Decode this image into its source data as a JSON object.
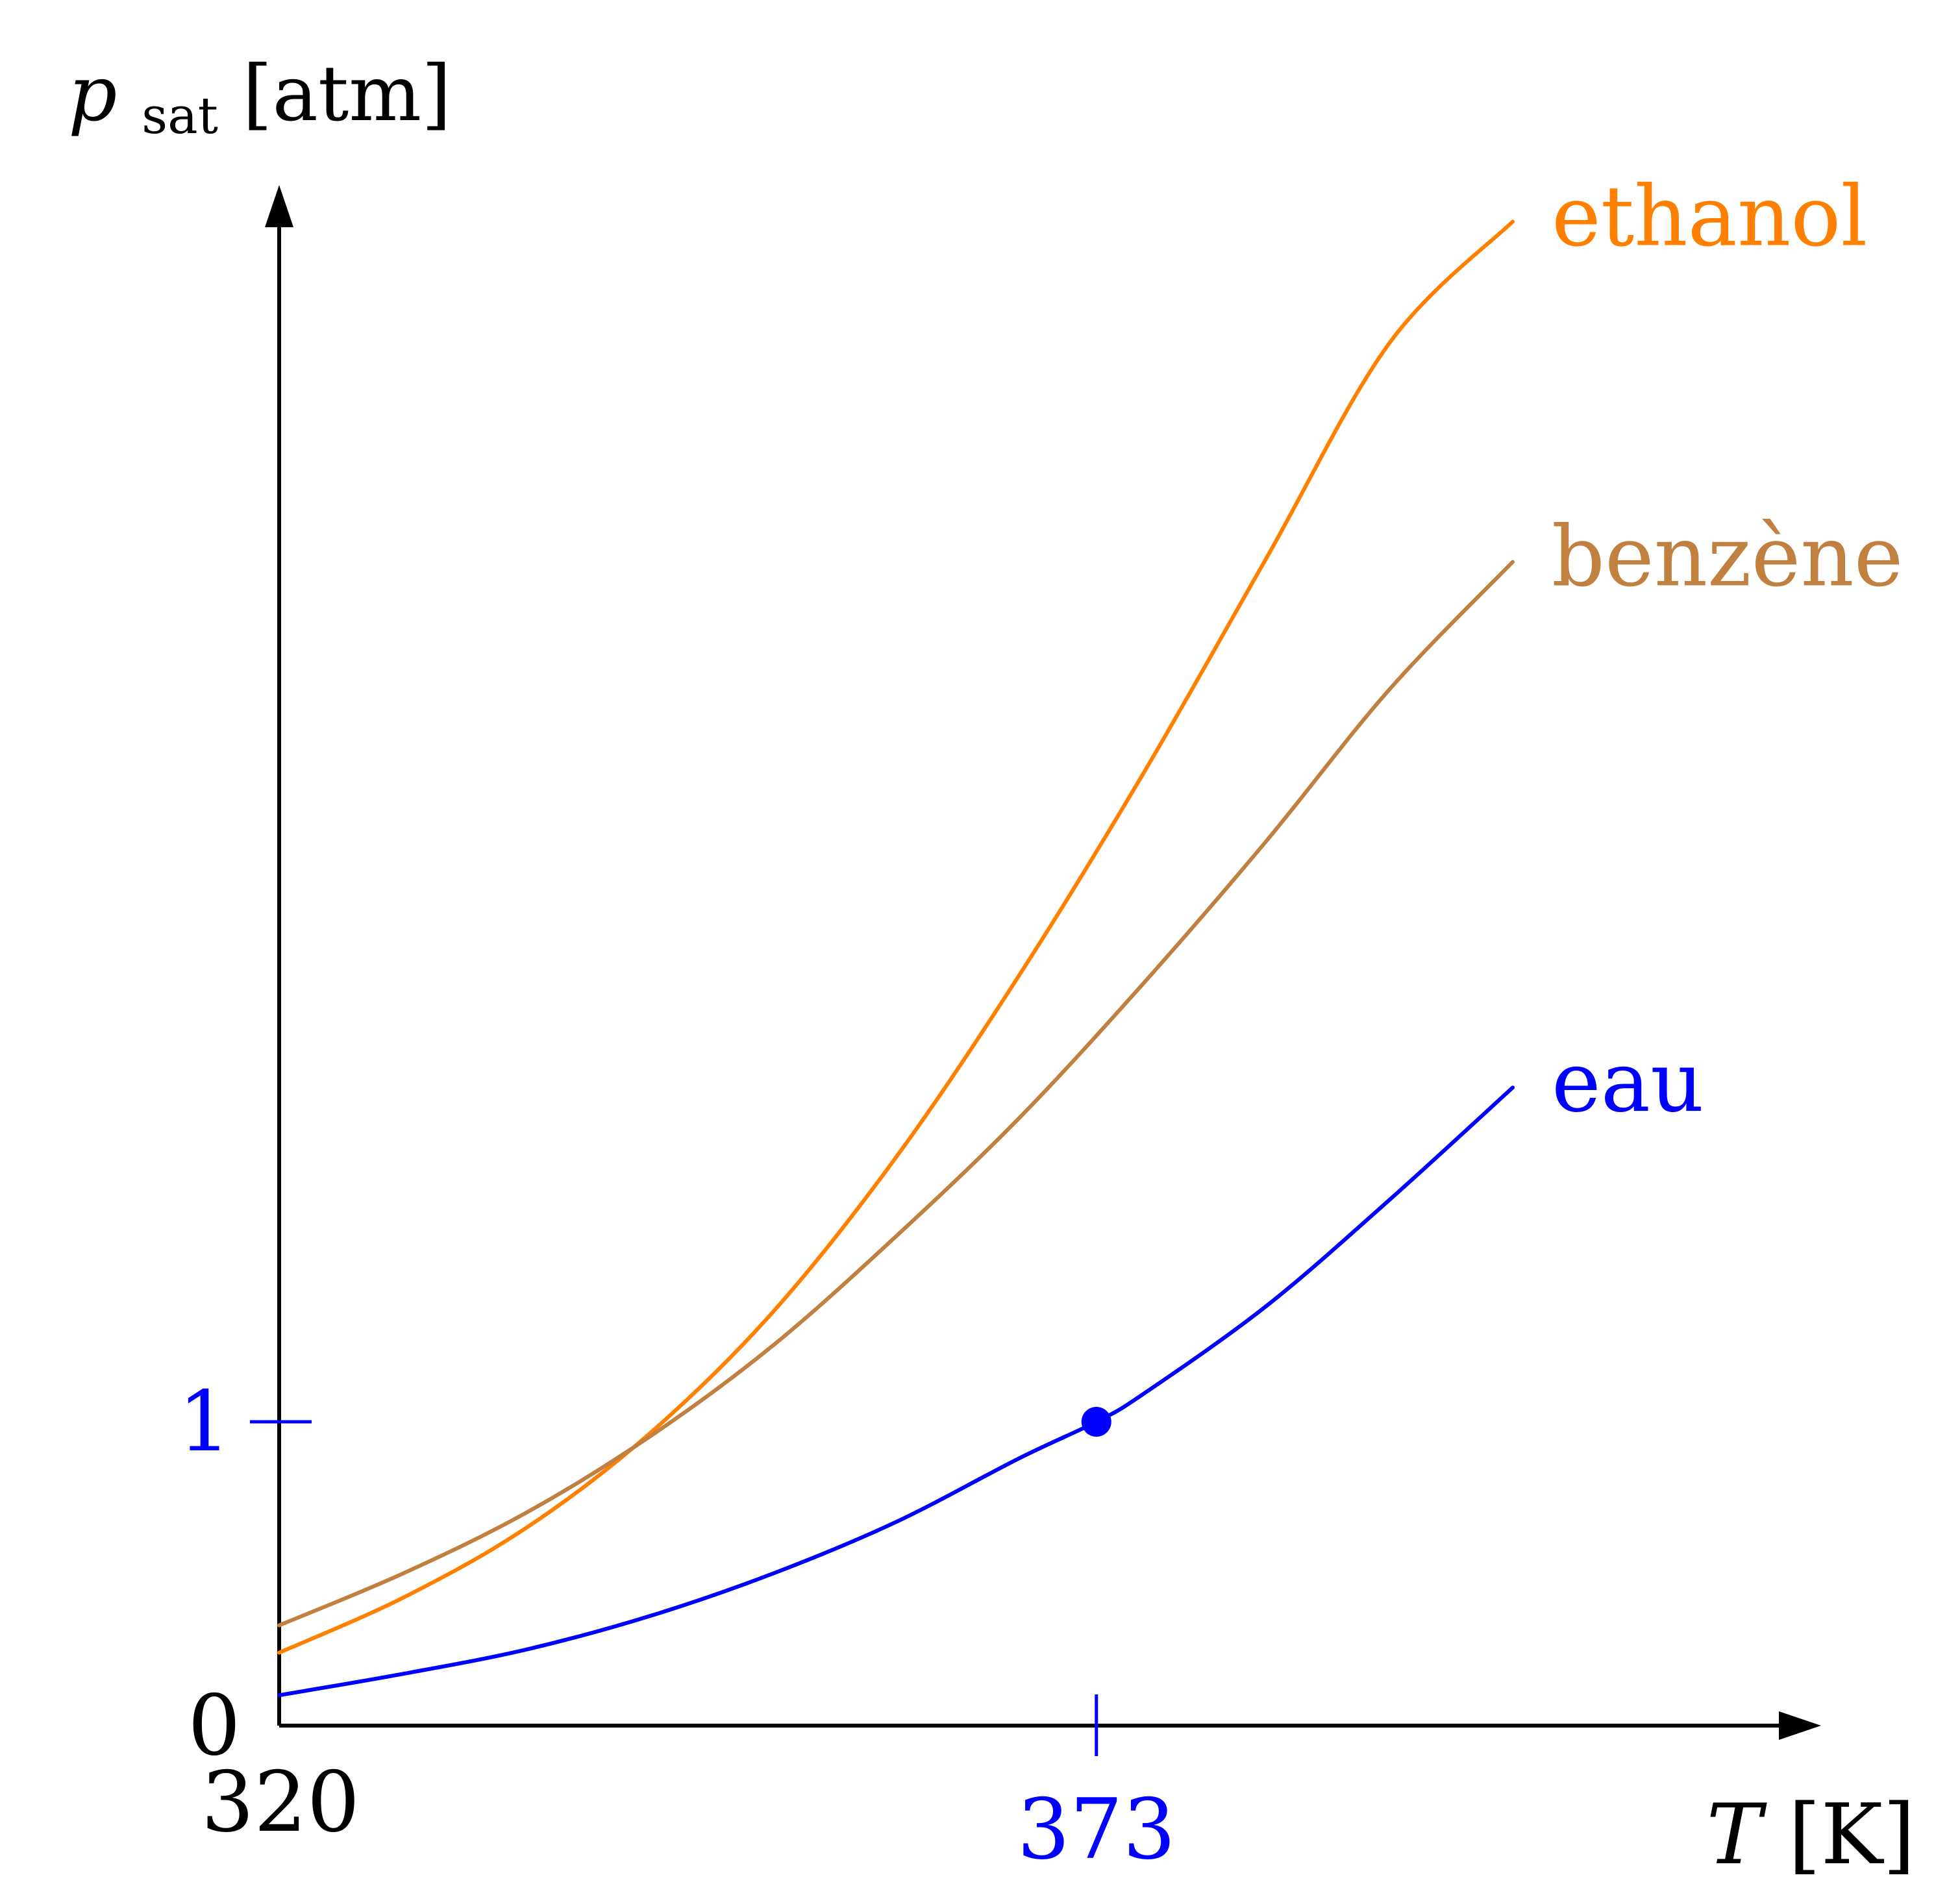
{
  "chart_data": {
    "type": "line",
    "x_axis": {
      "label_var": "T",
      "label_unit": "[K]",
      "ticks": [
        {
          "value": 320,
          "label": "320",
          "color": "#000000"
        },
        {
          "value": 373,
          "label": "373",
          "color": "#0000ff"
        }
      ],
      "range": [
        320,
        400
      ]
    },
    "y_axis": {
      "label_var": "p",
      "label_sub": "sat",
      "label_unit": "[atm]",
      "ticks": [
        {
          "value": 0,
          "label": "0",
          "color": "#000000"
        },
        {
          "value": 1,
          "label": "1",
          "color": "#0000ff"
        }
      ],
      "range": [
        0,
        5
      ]
    },
    "grid": false,
    "series": [
      {
        "name": "ethanol",
        "color": "#ff8000",
        "x": [
          320,
          328,
          336,
          344,
          352,
          360,
          368,
          376,
          384,
          392,
          400
        ],
        "y": [
          0.24,
          0.42,
          0.65,
          0.96,
          1.36,
          1.87,
          2.47,
          3.13,
          3.84,
          4.55,
          4.95
        ]
      },
      {
        "name": "benzène",
        "color": "#bf8040",
        "x": [
          320,
          328,
          336,
          344,
          352,
          360,
          368,
          376,
          384,
          392,
          400
        ],
        "y": [
          0.33,
          0.5,
          0.7,
          0.95,
          1.25,
          1.61,
          2.0,
          2.44,
          2.91,
          3.41,
          3.83
        ]
      },
      {
        "name": "eau",
        "color": "#0000ff",
        "x": [
          320,
          328,
          336,
          344,
          352,
          360,
          368,
          373,
          376,
          384,
          392,
          400
        ],
        "y": [
          0.1,
          0.17,
          0.25,
          0.36,
          0.5,
          0.67,
          0.88,
          1.0,
          1.09,
          1.38,
          1.73,
          2.1
        ]
      }
    ],
    "points": [
      {
        "x": 373,
        "y": 1,
        "color": "#0000ff"
      }
    ],
    "annotations": [
      {
        "text": "ethanol",
        "color": "#ff8000",
        "series": "ethanol"
      },
      {
        "text": "benzène",
        "color": "#bf8040",
        "series": "benzène"
      },
      {
        "text": "eau",
        "color": "#0000ff",
        "series": "eau"
      }
    ]
  }
}
